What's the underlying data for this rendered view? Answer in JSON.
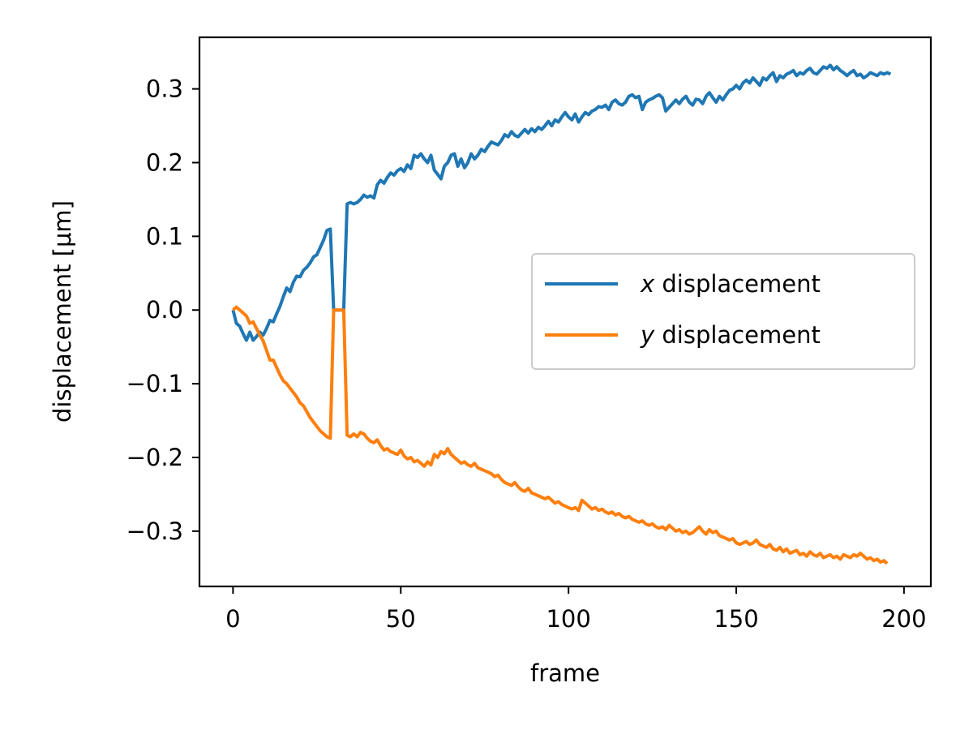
{
  "chart_data": {
    "type": "line",
    "xlabel": "frame",
    "ylabel": "displacement [μm]",
    "xlim": [
      -10,
      208
    ],
    "ylim": [
      -0.375,
      0.37
    ],
    "xticks": [
      0,
      50,
      100,
      150,
      200
    ],
    "yticks": [
      -0.3,
      -0.2,
      -0.1,
      0.0,
      0.1,
      0.2,
      0.3
    ],
    "xtick_labels": [
      "0",
      "50",
      "100",
      "150",
      "200"
    ],
    "ytick_labels": [
      "−0.3",
      "−0.2",
      "−0.1",
      "0.0",
      "0.1",
      "0.2",
      "0.3"
    ],
    "grid": false,
    "legend_position": "center-right",
    "series": [
      {
        "name": "x displacement",
        "name_prefix": "x",
        "name_suffix": " displacement",
        "color": "#1f77b4",
        "x_start": 0,
        "values": [
          0.0,
          -0.018,
          -0.022,
          -0.032,
          -0.041,
          -0.03,
          -0.041,
          -0.036,
          -0.03,
          -0.034,
          -0.025,
          -0.014,
          -0.016,
          -0.005,
          0.005,
          0.018,
          0.03,
          0.025,
          0.038,
          0.046,
          0.045,
          0.054,
          0.058,
          0.064,
          0.072,
          0.075,
          0.085,
          0.095,
          0.108,
          0.11,
          0.0,
          0.0,
          0.0,
          0.0,
          0.144,
          0.146,
          0.144,
          0.146,
          0.15,
          0.156,
          0.153,
          0.155,
          0.152,
          0.17,
          0.176,
          0.172,
          0.18,
          0.186,
          0.183,
          0.189,
          0.192,
          0.188,
          0.197,
          0.192,
          0.21,
          0.207,
          0.212,
          0.205,
          0.2,
          0.21,
          0.19,
          0.184,
          0.178,
          0.195,
          0.2,
          0.21,
          0.212,
          0.195,
          0.205,
          0.193,
          0.2,
          0.212,
          0.205,
          0.21,
          0.218,
          0.215,
          0.222,
          0.228,
          0.226,
          0.224,
          0.23,
          0.238,
          0.235,
          0.242,
          0.237,
          0.235,
          0.24,
          0.245,
          0.24,
          0.246,
          0.242,
          0.248,
          0.245,
          0.25,
          0.256,
          0.25,
          0.258,
          0.255,
          0.262,
          0.268,
          0.262,
          0.258,
          0.266,
          0.255,
          0.262,
          0.268,
          0.265,
          0.27,
          0.272,
          0.276,
          0.275,
          0.278,
          0.272,
          0.282,
          0.285,
          0.28,
          0.278,
          0.282,
          0.29,
          0.292,
          0.288,
          0.29,
          0.272,
          0.282,
          0.285,
          0.287,
          0.29,
          0.292,
          0.288,
          0.27,
          0.275,
          0.28,
          0.285,
          0.28,
          0.286,
          0.29,
          0.282,
          0.278,
          0.286,
          0.285,
          0.28,
          0.29,
          0.295,
          0.288,
          0.282,
          0.29,
          0.285,
          0.292,
          0.298,
          0.3,
          0.305,
          0.3,
          0.308,
          0.312,
          0.308,
          0.315,
          0.31,
          0.305,
          0.315,
          0.312,
          0.318,
          0.322,
          0.31,
          0.318,
          0.315,
          0.32,
          0.322,
          0.325,
          0.318,
          0.322,
          0.32,
          0.325,
          0.328,
          0.322,
          0.32,
          0.325,
          0.33,
          0.328,
          0.332,
          0.326,
          0.33,
          0.325,
          0.322,
          0.318,
          0.322,
          0.325,
          0.318,
          0.32,
          0.315,
          0.318,
          0.322,
          0.32,
          0.318,
          0.322,
          0.32,
          0.322,
          0.32
        ]
      },
      {
        "name": "y displacement",
        "name_prefix": "y",
        "name_suffix": " displacement",
        "color": "#ff7f0e",
        "x_start": 0,
        "values": [
          0.0,
          0.004,
          0.0,
          -0.004,
          -0.008,
          -0.018,
          -0.016,
          -0.025,
          -0.034,
          -0.042,
          -0.055,
          -0.068,
          -0.068,
          -0.078,
          -0.088,
          -0.096,
          -0.1,
          -0.106,
          -0.112,
          -0.118,
          -0.126,
          -0.13,
          -0.138,
          -0.146,
          -0.152,
          -0.158,
          -0.164,
          -0.168,
          -0.172,
          -0.174,
          0.0,
          0.0,
          0.0,
          0.0,
          -0.17,
          -0.172,
          -0.168,
          -0.172,
          -0.166,
          -0.168,
          -0.174,
          -0.178,
          -0.18,
          -0.176,
          -0.184,
          -0.19,
          -0.188,
          -0.192,
          -0.194,
          -0.196,
          -0.19,
          -0.198,
          -0.202,
          -0.2,
          -0.206,
          -0.204,
          -0.208,
          -0.212,
          -0.206,
          -0.21,
          -0.196,
          -0.2,
          -0.192,
          -0.195,
          -0.188,
          -0.196,
          -0.2,
          -0.204,
          -0.208,
          -0.206,
          -0.21,
          -0.212,
          -0.208,
          -0.214,
          -0.216,
          -0.218,
          -0.22,
          -0.222,
          -0.226,
          -0.224,
          -0.23,
          -0.234,
          -0.236,
          -0.238,
          -0.234,
          -0.24,
          -0.244,
          -0.246,
          -0.242,
          -0.248,
          -0.25,
          -0.252,
          -0.254,
          -0.256,
          -0.254,
          -0.258,
          -0.262,
          -0.26,
          -0.264,
          -0.266,
          -0.268,
          -0.27,
          -0.268,
          -0.272,
          -0.258,
          -0.262,
          -0.266,
          -0.27,
          -0.268,
          -0.272,
          -0.27,
          -0.274,
          -0.276,
          -0.274,
          -0.278,
          -0.276,
          -0.28,
          -0.282,
          -0.28,
          -0.284,
          -0.286,
          -0.288,
          -0.286,
          -0.29,
          -0.292,
          -0.29,
          -0.294,
          -0.296,
          -0.294,
          -0.298,
          -0.292,
          -0.296,
          -0.3,
          -0.298,
          -0.302,
          -0.3,
          -0.304,
          -0.302,
          -0.298,
          -0.294,
          -0.3,
          -0.304,
          -0.298,
          -0.302,
          -0.3,
          -0.306,
          -0.308,
          -0.31,
          -0.312,
          -0.31,
          -0.316,
          -0.318,
          -0.316,
          -0.314,
          -0.318,
          -0.316,
          -0.312,
          -0.318,
          -0.32,
          -0.322,
          -0.318,
          -0.324,
          -0.326,
          -0.322,
          -0.328,
          -0.324,
          -0.33,
          -0.328,
          -0.326,
          -0.332,
          -0.33,
          -0.334,
          -0.328,
          -0.332,
          -0.334,
          -0.33,
          -0.336,
          -0.334,
          -0.332,
          -0.336,
          -0.334,
          -0.338,
          -0.332,
          -0.334,
          -0.336,
          -0.332,
          -0.334,
          -0.33,
          -0.334,
          -0.338,
          -0.336,
          -0.34,
          -0.338,
          -0.342,
          -0.34,
          -0.344
        ]
      }
    ]
  }
}
